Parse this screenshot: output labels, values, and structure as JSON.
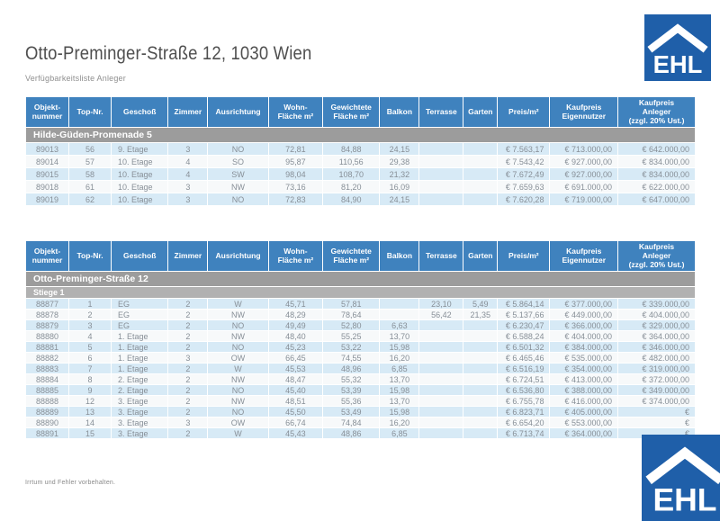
{
  "page": {
    "title": "Otto-Preminger-Straße 12, 1030 Wien",
    "subtitle": "Verfügbarkeitsliste Anleger",
    "footer": "Irrtum und Fehler vorbehalten.",
    "logo_text": "EHL"
  },
  "colors": {
    "header_blue": "#3f82be",
    "band_gray": "#9c9c9c",
    "subband_gray": "#b1b1b1",
    "row_blue": "#d7eaf6",
    "row_alt": "#f7f9fa",
    "logo_blue": "#1f5fa9"
  },
  "columns": [
    {
      "label": "Objekt-\nnummer",
      "align": "center"
    },
    {
      "label": "Top-Nr.",
      "align": "center"
    },
    {
      "label": "Geschoß",
      "align": "left"
    },
    {
      "label": "Zimmer",
      "align": "center"
    },
    {
      "label": "Ausrichtung",
      "align": "center"
    },
    {
      "label": "Wohn-\nFläche m²",
      "align": "center"
    },
    {
      "label": "Gewichtete\nFläche m²",
      "align": "center"
    },
    {
      "label": "Balkon",
      "align": "center"
    },
    {
      "label": "Terrasse",
      "align": "center"
    },
    {
      "label": "Garten",
      "align": "center"
    },
    {
      "label": "Preis/m²",
      "align": "right"
    },
    {
      "label": "Kaufpreis\nEigennutzer",
      "align": "right"
    },
    {
      "label": "Kaufpreis\nAnleger\n(zzgl. 20% Ust.)",
      "align": "right"
    }
  ],
  "tables": [
    {
      "section": "Hilde-Güden-Promenade 5",
      "rows": [
        [
          "89013",
          "56",
          "9. Etage",
          "3",
          "NO",
          "72,81",
          "84,88",
          "24,15",
          "",
          "",
          "€ 7.563,17",
          "€ 713.000,00",
          "€ 642.000,00"
        ],
        [
          "89014",
          "57",
          "10. Etage",
          "4",
          "SO",
          "95,87",
          "110,56",
          "29,38",
          "",
          "",
          "€ 7.543,42",
          "€ 927.000,00",
          "€ 834.000,00"
        ],
        [
          "89015",
          "58",
          "10. Etage",
          "4",
          "SW",
          "98,04",
          "108,70",
          "21,32",
          "",
          "",
          "€ 7.672,49",
          "€ 927.000,00",
          "€ 834.000,00"
        ],
        [
          "89018",
          "61",
          "10. Etage",
          "3",
          "NW",
          "73,16",
          "81,20",
          "16,09",
          "",
          "",
          "€ 7.659,63",
          "€ 691.000,00",
          "€ 622.000,00"
        ],
        [
          "89019",
          "62",
          "10. Etage",
          "3",
          "NO",
          "72,83",
          "84,90",
          "24,15",
          "",
          "",
          "€ 7.620,28",
          "€ 719.000,00",
          "€ 647.000,00"
        ]
      ]
    },
    {
      "section": "Otto-Preminger-Straße 12",
      "subsection": "Stiege 1",
      "rows": [
        [
          "88877",
          "1",
          "EG",
          "2",
          "W",
          "45,71",
          "57,81",
          "",
          "23,10",
          "5,49",
          "€ 5.864,14",
          "€ 377.000,00",
          "€ 339.000,00"
        ],
        [
          "88878",
          "2",
          "EG",
          "2",
          "NW",
          "48,29",
          "78,64",
          "",
          "56,42",
          "21,35",
          "€ 5.137,66",
          "€ 449.000,00",
          "€ 404.000,00"
        ],
        [
          "88879",
          "3",
          "EG",
          "2",
          "NO",
          "49,49",
          "52,80",
          "6,63",
          "",
          "",
          "€ 6.230,47",
          "€ 366.000,00",
          "€ 329.000,00"
        ],
        [
          "88880",
          "4",
          "1. Etage",
          "2",
          "NW",
          "48,40",
          "55,25",
          "13,70",
          "",
          "",
          "€ 6.588,24",
          "€ 404.000,00",
          "€ 364.000,00"
        ],
        [
          "88881",
          "5",
          "1. Etage",
          "2",
          "NO",
          "45,23",
          "53,22",
          "15,98",
          "",
          "",
          "€ 6.501,32",
          "€ 384.000,00",
          "€ 346.000,00"
        ],
        [
          "88882",
          "6",
          "1. Etage",
          "3",
          "OW",
          "66,45",
          "74,55",
          "16,20",
          "",
          "",
          "€ 6.465,46",
          "€ 535.000,00",
          "€ 482.000,00"
        ],
        [
          "88883",
          "7",
          "1. Etage",
          "2",
          "W",
          "45,53",
          "48,96",
          "6,85",
          "",
          "",
          "€ 6.516,19",
          "€ 354.000,00",
          "€ 319.000,00"
        ],
        [
          "88884",
          "8",
          "2. Etage",
          "2",
          "NW",
          "48,47",
          "55,32",
          "13,70",
          "",
          "",
          "€ 6.724,51",
          "€ 413.000,00",
          "€ 372.000,00"
        ],
        [
          "88885",
          "9",
          "2. Etage",
          "2",
          "NO",
          "45,40",
          "53,39",
          "15,98",
          "",
          "",
          "€ 6.536,80",
          "€ 388.000,00",
          "€ 349.000,00"
        ],
        [
          "88888",
          "12",
          "3. Etage",
          "2",
          "NW",
          "48,51",
          "55,36",
          "13,70",
          "",
          "",
          "€ 6.755,78",
          "€ 416.000,00",
          "€ 374.000,00"
        ],
        [
          "88889",
          "13",
          "3. Etage",
          "2",
          "NO",
          "45,50",
          "53,49",
          "15,98",
          "",
          "",
          "€ 6.823,71",
          "€ 405.000,00",
          "€"
        ],
        [
          "88890",
          "14",
          "3. Etage",
          "3",
          "OW",
          "66,74",
          "74,84",
          "16,20",
          "",
          "",
          "€ 6.654,20",
          "€ 553.000,00",
          "€"
        ],
        [
          "88891",
          "15",
          "3. Etage",
          "2",
          "W",
          "45,43",
          "48,86",
          "6,85",
          "",
          "",
          "€ 6.713,74",
          "€ 364.000,00",
          "€"
        ]
      ]
    }
  ]
}
